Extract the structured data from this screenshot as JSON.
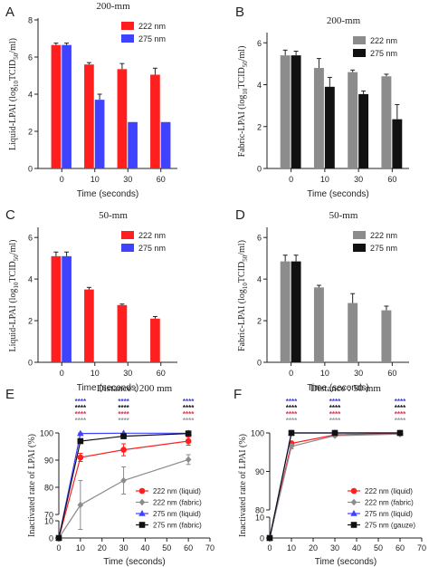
{
  "colors": {
    "red": "#ff1f1f",
    "blue": "#3f43ff",
    "gray": "#8c8c8c",
    "black": "#111111",
    "axis": "#222222",
    "sig_blue": "#3a3ae0",
    "sig_black": "#111111",
    "sig_red": "#e0304a",
    "sig_gray": "#9a9a9a"
  },
  "chart_data": [
    {
      "panel": "A",
      "type": "bar",
      "title": "200-mm",
      "xlabel": "Time (seconds)",
      "ylabel": "Liquid-LPAI (log10TCID50/ml)",
      "categories": [
        "0",
        "10",
        "30",
        "60"
      ],
      "yticks": [
        "0",
        "2",
        "4",
        "6",
        "8"
      ],
      "ylim": [
        0,
        8
      ],
      "legend_position": "top-right",
      "series": [
        {
          "name": "222 nm",
          "color": "#ff1f1f",
          "values": [
            6.65,
            5.6,
            5.35,
            5.05
          ],
          "errors": [
            0.1,
            0.1,
            0.3,
            0.35
          ]
        },
        {
          "name": "275 nm",
          "color": "#3f43ff",
          "values": [
            6.65,
            3.7,
            2.5,
            2.5
          ],
          "errors": [
            0.1,
            0.3,
            0,
            0
          ]
        }
      ]
    },
    {
      "panel": "B",
      "type": "bar",
      "title": "200-mm",
      "xlabel": "Time (seconds)",
      "ylabel": "Fabric-LPAI (log10TCID50/ml)",
      "categories": [
        "0",
        "10",
        "30",
        "60"
      ],
      "yticks": [
        "0",
        "2",
        "4",
        "6"
      ],
      "ylim": [
        0,
        6.4
      ],
      "legend_position": "top-right",
      "series": [
        {
          "name": "222 nm",
          "color": "#8c8c8c",
          "values": [
            5.4,
            4.8,
            4.6,
            4.4
          ],
          "errors": [
            0.25,
            0.45,
            0.1,
            0.1
          ]
        },
        {
          "name": "275 nm",
          "color": "#111111",
          "values": [
            5.4,
            3.9,
            3.55,
            2.35
          ],
          "errors": [
            0.2,
            0.45,
            0.15,
            0.7
          ]
        }
      ]
    },
    {
      "panel": "C",
      "type": "bar",
      "title": "50-mm",
      "xlabel": "Time (seconds)",
      "ylabel": "Liquid-LPAI (log10TCID50/ml)",
      "categories": [
        "0",
        "10",
        "30",
        "60"
      ],
      "yticks": [
        "0",
        "2",
        "4",
        "6"
      ],
      "ylim": [
        0,
        6.4
      ],
      "legend_position": "top-right",
      "series": [
        {
          "name": "222 nm",
          "color": "#ff1f1f",
          "values": [
            5.1,
            3.5,
            2.75,
            2.1
          ],
          "errors": [
            0.2,
            0.1,
            0.05,
            0.1
          ]
        },
        {
          "name": "275 nm",
          "color": "#3f43ff",
          "values": [
            5.1,
            null,
            null,
            null
          ],
          "errors": [
            0.2,
            0,
            0,
            0
          ]
        }
      ]
    },
    {
      "panel": "D",
      "type": "bar",
      "title": "50-mm",
      "xlabel": "Time (seconds)",
      "ylabel": "Fabric-LPAI (log10TCID50/ml)",
      "categories": [
        "0",
        "10",
        "30",
        "60"
      ],
      "yticks": [
        "0",
        "2",
        "4",
        "6"
      ],
      "ylim": [
        0,
        6.4
      ],
      "legend_position": "top-right",
      "series": [
        {
          "name": "222 nm",
          "color": "#8c8c8c",
          "values": [
            4.85,
            3.6,
            2.85,
            2.5
          ],
          "errors": [
            0.3,
            0.1,
            0.45,
            0.2
          ]
        },
        {
          "name": "275 nm",
          "color": "#111111",
          "values": [
            4.85,
            null,
            null,
            null
          ],
          "errors": [
            0.3,
            0,
            0,
            0
          ]
        }
      ]
    },
    {
      "panel": "E",
      "type": "line",
      "title": "Distance : 200 mm",
      "xlabel": "Time (seconds)",
      "ylabel": "Inactivated rate of LPAI (%)",
      "xticks": [
        "0",
        "10",
        "20",
        "30",
        "40",
        "50",
        "60",
        "70"
      ],
      "yticks": [
        "0",
        "10",
        "70",
        "80",
        "90",
        "100"
      ],
      "xlim": [
        0,
        70
      ],
      "y_axis_break": [
        10,
        70
      ],
      "legend_position": "bottom-right",
      "significance_marks": "****",
      "significance_x": [
        10,
        30,
        60
      ],
      "series": [
        {
          "name": "222 nm (liquid)",
          "color": "#ff1f1f",
          "marker": "circle",
          "x": [
            0,
            10,
            30,
            60
          ],
          "y": [
            0,
            91,
            93.8,
            97
          ],
          "errors": [
            0,
            1.5,
            2.2,
            1.5
          ]
        },
        {
          "name": "222 nm (fabric)",
          "color": "#8c8c8c",
          "marker": "diamond",
          "x": [
            0,
            10,
            30,
            60
          ],
          "y": [
            0,
            73.5,
            82.5,
            90.2
          ],
          "errors": [
            0,
            9,
            5,
            1.8
          ]
        },
        {
          "name": "275 nm (liquid)",
          "color": "#3f43ff",
          "marker": "triangle",
          "x": [
            0,
            10,
            30,
            60
          ],
          "y": [
            0,
            99.8,
            99.9,
            99.9
          ],
          "errors": [
            0,
            0.2,
            0,
            0
          ]
        },
        {
          "name": "275 nm (fabric)",
          "color": "#111111",
          "marker": "square",
          "x": [
            0,
            10,
            30,
            60
          ],
          "y": [
            0,
            97,
            98.8,
            99.8
          ],
          "errors": [
            0,
            0.8,
            0.3,
            0.1
          ]
        }
      ]
    },
    {
      "panel": "F",
      "type": "line",
      "title": "Distance : 50 mm",
      "xlabel": "Time (seconds)",
      "ylabel": "Inactivated rate of LPAI (%)",
      "xticks": [
        "0",
        "10",
        "20",
        "30",
        "40",
        "50",
        "60",
        "70"
      ],
      "yticks": [
        "0",
        "10",
        "80",
        "90",
        "100"
      ],
      "xlim": [
        0,
        70
      ],
      "y_axis_break": [
        10,
        80
      ],
      "legend_position": "bottom-right",
      "significance_marks": "****",
      "significance_x": [
        10,
        30,
        60
      ],
      "series": [
        {
          "name": "222 nm (liquid)",
          "color": "#ff1f1f",
          "marker": "circle",
          "x": [
            0,
            10,
            30,
            60
          ],
          "y": [
            0,
            97.3,
            99.5,
            99.9
          ],
          "errors": [
            0,
            0.5,
            0.1,
            0
          ]
        },
        {
          "name": "222 nm (fabric)",
          "color": "#8c8c8c",
          "marker": "diamond",
          "x": [
            0,
            10,
            30,
            60
          ],
          "y": [
            0,
            96.5,
            99.3,
            99.7
          ],
          "errors": [
            0,
            0.6,
            0.3,
            0.2
          ]
        },
        {
          "name": "275 nm (liquid)",
          "color": "#3f43ff",
          "marker": "triangle",
          "x": [
            0,
            10,
            30,
            60
          ],
          "y": [
            0,
            100,
            100,
            100
          ],
          "errors": [
            0,
            0,
            0,
            0
          ]
        },
        {
          "name": "275 nm (gauze)",
          "color": "#111111",
          "marker": "square",
          "x": [
            0,
            10,
            30,
            60
          ],
          "y": [
            0,
            100,
            100,
            100
          ],
          "errors": [
            0,
            0,
            0,
            0
          ]
        }
      ]
    }
  ]
}
